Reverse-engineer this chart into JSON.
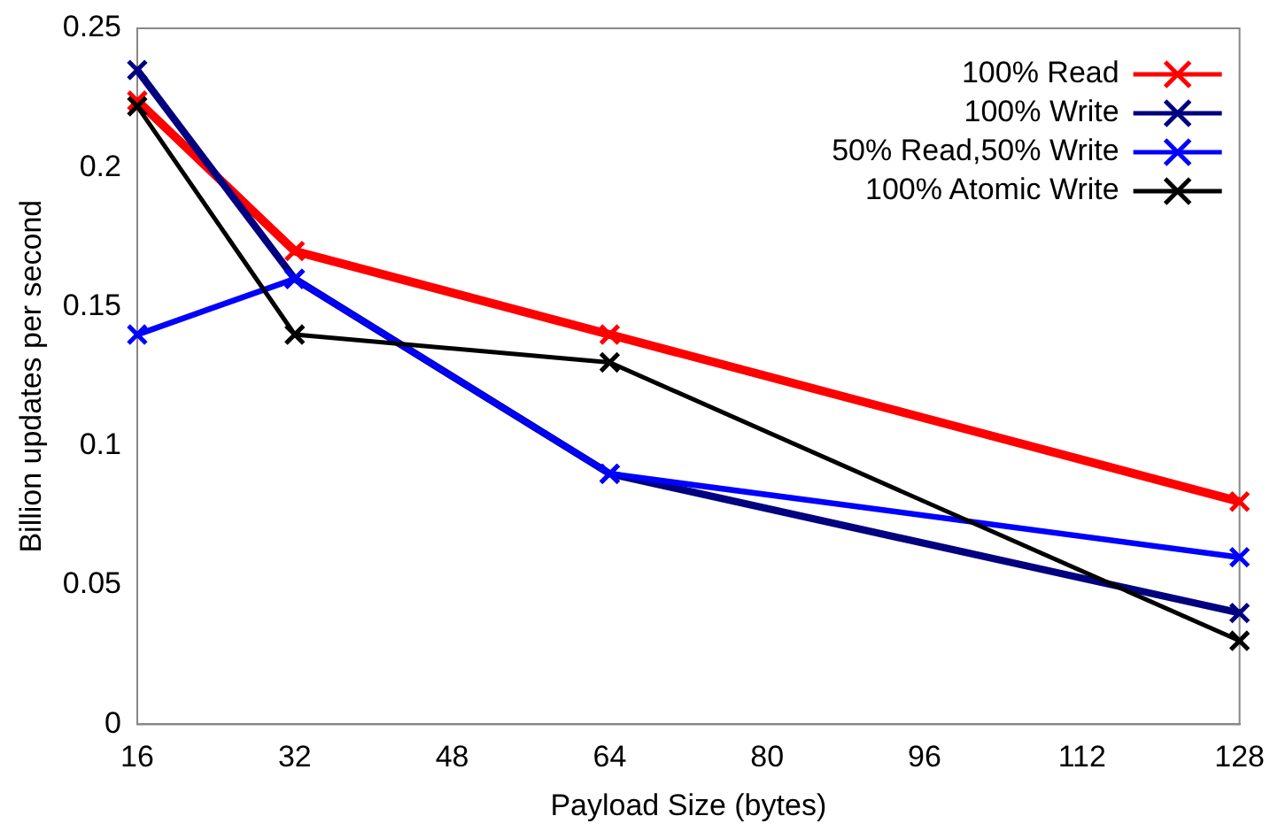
{
  "chart_data": {
    "type": "line",
    "xlabel": "Payload Size (bytes)",
    "ylabel": "Billion updates per second",
    "x": [
      16,
      32,
      64,
      128
    ],
    "xlim": [
      16,
      128
    ],
    "xticks": [
      16,
      32,
      48,
      64,
      80,
      96,
      112,
      128
    ],
    "ylim": [
      0,
      0.25
    ],
    "yticks": [
      0,
      0.05,
      0.1,
      0.15,
      0.2,
      0.25
    ],
    "marker": "cross",
    "legend": "top right",
    "grid": false,
    "series": [
      {
        "name": "100% Read",
        "color": "#ff0000",
        "values": [
          0.224,
          0.17,
          0.14,
          0.08
        ]
      },
      {
        "name": "100% Write",
        "color": "#000080",
        "values": [
          0.235,
          0.16,
          0.09,
          0.04
        ]
      },
      {
        "name": "50% Read,50% Write",
        "color": "#0000ff",
        "values": [
          0.14,
          0.16,
          0.09,
          0.06
        ]
      },
      {
        "name": "100% Atomic Write",
        "color": "#000000",
        "values": [
          0.222,
          0.14,
          0.13,
          0.03
        ]
      }
    ]
  }
}
